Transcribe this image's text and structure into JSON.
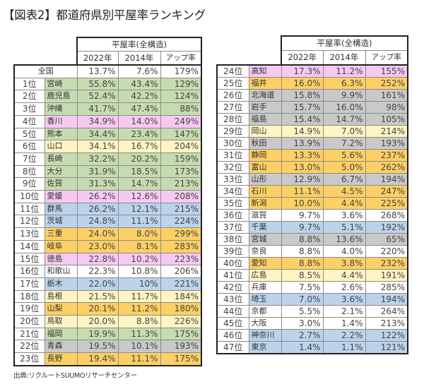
{
  "title": "【図表2】都道府県別平屋率ランキング",
  "source": "出典:リクルートSUUMOリサーチセンター",
  "header": {
    "group": "平屋率(全構造)",
    "col_2022": "2022年",
    "col_2014": "2014年",
    "col_up": "アップ率"
  },
  "colors": {
    "green": "#c6dcb0",
    "pink": "#f7c9f2",
    "ylight": "#fff5c2",
    "gold": "#fdd065",
    "blue": "#bcd3ec",
    "gray": "#c9c9c9",
    "white": "#ffffff"
  },
  "national": {
    "label": "全国",
    "v2022": "13.7%",
    "v2014": "7.6%",
    "up": "179%"
  },
  "left_rows": [
    {
      "rank": "1位",
      "pref": "宮崎",
      "v2022": "55.8%",
      "v2014": "43.4%",
      "up": "129%",
      "color": "green"
    },
    {
      "rank": "2位",
      "pref": "鹿児島",
      "v2022": "52.4%",
      "v2014": "42.2%",
      "up": "124%",
      "color": "green"
    },
    {
      "rank": "3位",
      "pref": "沖縄",
      "v2022": "41.7%",
      "v2014": "47.4%",
      "up": "88%",
      "color": "green"
    },
    {
      "rank": "4位",
      "pref": "香川",
      "v2022": "34.9%",
      "v2014": "14.0%",
      "up": "249%",
      "color": "pink"
    },
    {
      "rank": "5位",
      "pref": "熊本",
      "v2022": "34.4%",
      "v2014": "23.4%",
      "up": "147%",
      "color": "green"
    },
    {
      "rank": "6位",
      "pref": "山口",
      "v2022": "34.1%",
      "v2014": "16.7%",
      "up": "204%",
      "color": "ylight"
    },
    {
      "rank": "7位",
      "pref": "長崎",
      "v2022": "32.2%",
      "v2014": "20.2%",
      "up": "159%",
      "color": "green"
    },
    {
      "rank": "8位",
      "pref": "大分",
      "v2022": "31.9%",
      "v2014": "18.5%",
      "up": "173%",
      "color": "green"
    },
    {
      "rank": "9位",
      "pref": "佐賀",
      "v2022": "31.3%",
      "v2014": "14.7%",
      "up": "213%",
      "color": "green"
    },
    {
      "rank": "10位",
      "pref": "愛媛",
      "v2022": "26.2%",
      "v2014": "12.6%",
      "up": "208%",
      "color": "pink"
    },
    {
      "rank": "11位",
      "pref": "群馬",
      "v2022": "26.2%",
      "v2014": "12.1%",
      "up": "215%",
      "color": "blue"
    },
    {
      "rank": "12位",
      "pref": "茨城",
      "v2022": "24.8%",
      "v2014": "11.1%",
      "up": "224%",
      "color": "blue"
    },
    {
      "rank": "13位",
      "pref": "三重",
      "v2022": "24.0%",
      "v2014": "8.0%",
      "up": "299%",
      "color": "gold"
    },
    {
      "rank": "14位",
      "pref": "岐阜",
      "v2022": "23.0%",
      "v2014": "8.1%",
      "up": "283%",
      "color": "gold"
    },
    {
      "rank": "15位",
      "pref": "徳島",
      "v2022": "22.8%",
      "v2014": "10.2%",
      "up": "223%",
      "color": "pink"
    },
    {
      "rank": "16位",
      "pref": "和歌山",
      "v2022": "22.3%",
      "v2014": "10.8%",
      "up": "206%",
      "color": "white"
    },
    {
      "rank": "17位",
      "pref": "栃木",
      "v2022": "22.0%",
      "v2014": "10%",
      "up": "221%",
      "color": "blue"
    },
    {
      "rank": "18位",
      "pref": "島根",
      "v2022": "21.5%",
      "v2014": "11.7%",
      "up": "184%",
      "color": "ylight"
    },
    {
      "rank": "19位",
      "pref": "山梨",
      "v2022": "20.1%",
      "v2014": "11.2%",
      "up": "180%",
      "color": "gold"
    },
    {
      "rank": "20位",
      "pref": "鳥取",
      "v2022": "20.0%",
      "v2014": "8.8%",
      "up": "226%",
      "color": "ylight"
    },
    {
      "rank": "21位",
      "pref": "福岡",
      "v2022": "19.9%",
      "v2014": "11.3%",
      "up": "175%",
      "color": "green"
    },
    {
      "rank": "22位",
      "pref": "青森",
      "v2022": "19.5%",
      "v2014": "10.1%",
      "up": "193%",
      "color": "gray"
    },
    {
      "rank": "23位",
      "pref": "長野",
      "v2022": "19.4%",
      "v2014": "11.1%",
      "up": "175%",
      "color": "gold"
    }
  ],
  "right_rows": [
    {
      "rank": "24位",
      "pref": "高知",
      "v2022": "17.3%",
      "v2014": "11.2%",
      "up": "155%",
      "color": "pink"
    },
    {
      "rank": "25位",
      "pref": "福井",
      "v2022": "16.0%",
      "v2014": "6.3%",
      "up": "252%",
      "color": "gold"
    },
    {
      "rank": "26位",
      "pref": "北海道",
      "v2022": "15.8%",
      "v2014": "9.9%",
      "up": "161%",
      "color": "gray"
    },
    {
      "rank": "27位",
      "pref": "岩手",
      "v2022": "15.7%",
      "v2014": "16.0%",
      "up": "98%",
      "color": "gray"
    },
    {
      "rank": "28位",
      "pref": "福島",
      "v2022": "15.4%",
      "v2014": "14.7%",
      "up": "105%",
      "color": "gray"
    },
    {
      "rank": "29位",
      "pref": "岡山",
      "v2022": "14.9%",
      "v2014": "7.0%",
      "up": "214%",
      "color": "ylight"
    },
    {
      "rank": "30位",
      "pref": "秋田",
      "v2022": "13.9%",
      "v2014": "7.2%",
      "up": "193%",
      "color": "gray"
    },
    {
      "rank": "31位",
      "pref": "静岡",
      "v2022": "13.3%",
      "v2014": "5.6%",
      "up": "237%",
      "color": "gold"
    },
    {
      "rank": "32位",
      "pref": "富山",
      "v2022": "13.0%",
      "v2014": "5.0%",
      "up": "262%",
      "color": "gold"
    },
    {
      "rank": "33位",
      "pref": "山形",
      "v2022": "12.9%",
      "v2014": "6.7%",
      "up": "194%",
      "color": "gray"
    },
    {
      "rank": "34位",
      "pref": "石川",
      "v2022": "11.1%",
      "v2014": "4.5%",
      "up": "247%",
      "color": "gold"
    },
    {
      "rank": "35位",
      "pref": "新潟",
      "v2022": "10.0%",
      "v2014": "4.4%",
      "up": "225%",
      "color": "gold"
    },
    {
      "rank": "36位",
      "pref": "滋賀",
      "v2022": "9.7%",
      "v2014": "3.6%",
      "up": "268%",
      "color": "white"
    },
    {
      "rank": "37位",
      "pref": "千葉",
      "v2022": "9.7%",
      "v2014": "5.1%",
      "up": "192%",
      "color": "blue"
    },
    {
      "rank": "38位",
      "pref": "宮城",
      "v2022": "8.8%",
      "v2014": "13.6%",
      "up": "65%",
      "color": "gray"
    },
    {
      "rank": "39位",
      "pref": "奈良",
      "v2022": "8.8%",
      "v2014": "4.0%",
      "up": "220%",
      "color": "white"
    },
    {
      "rank": "40位",
      "pref": "愛知",
      "v2022": "8.8%",
      "v2014": "3.8%",
      "up": "232%",
      "color": "gold"
    },
    {
      "rank": "41位",
      "pref": "広島",
      "v2022": "8.5%",
      "v2014": "4.4%",
      "up": "191%",
      "color": "ylight"
    },
    {
      "rank": "42位",
      "pref": "兵庫",
      "v2022": "7.5%",
      "v2014": "2.6%",
      "up": "285%",
      "color": "white"
    },
    {
      "rank": "43位",
      "pref": "埼玉",
      "v2022": "7.0%",
      "v2014": "3.6%",
      "up": "194%",
      "color": "blue"
    },
    {
      "rank": "44位",
      "pref": "京都",
      "v2022": "5.5%",
      "v2014": "2.1%",
      "up": "264%",
      "color": "white"
    },
    {
      "rank": "45位",
      "pref": "大阪",
      "v2022": "3.0%",
      "v2014": "1.4%",
      "up": "213%",
      "color": "white"
    },
    {
      "rank": "46位",
      "pref": "神奈川",
      "v2022": "2.7%",
      "v2014": "2.2%",
      "up": "122%",
      "color": "blue"
    },
    {
      "rank": "47位",
      "pref": "東京",
      "v2022": "1.4%",
      "v2014": "1.1%",
      "up": "121%",
      "color": "blue"
    }
  ]
}
